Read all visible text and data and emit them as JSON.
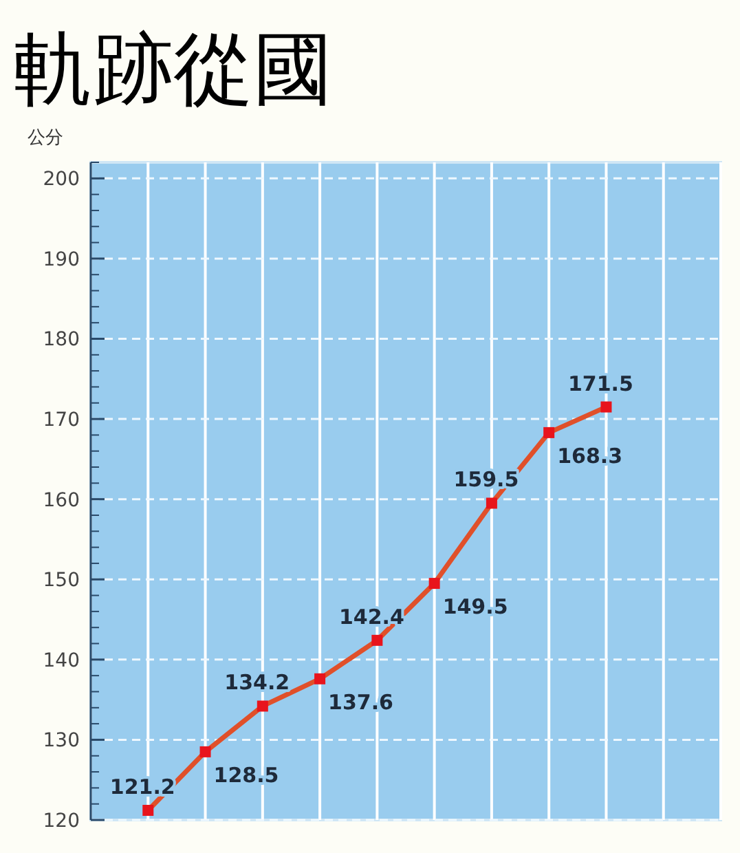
{
  "chart_data": {
    "type": "line",
    "title": "軌跡從國",
    "ylabel": "公分",
    "categories": [
      null,
      null,
      null,
      null,
      null,
      null,
      null,
      null,
      null,
      null,
      null
    ],
    "series": [
      {
        "color": "#e0502a",
        "values": [
          121.2,
          128.5,
          134.2,
          137.6,
          142.4,
          149.5,
          159.5,
          168.3,
          171.5,
          null,
          null
        ]
      }
    ],
    "ylim": [
      120,
      202
    ],
    "yticks": [
      120,
      130,
      140,
      150,
      160,
      170,
      180,
      190,
      200
    ],
    "grid": true,
    "marker": "square",
    "line_style": "solid",
    "data_labels": true
  }
}
